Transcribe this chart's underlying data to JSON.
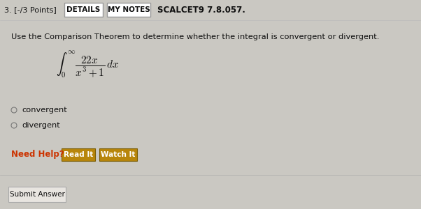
{
  "bg_color": "#cac8c2",
  "content_bg": "#edecea",
  "header_bg": "#dddbd7",
  "problem_number": "3. [-/3 Points]",
  "details_btn": "DETAILS",
  "mynotes_btn": "MY NOTES",
  "scalcet": "SCALCET9 7.8.057.",
  "question_text": "Use the Comparison Theorem to determine whether the integral is convergent or divergent.",
  "integral_expr": "$\\int_0^{\\infty} \\dfrac{22x}{x^3+1}\\, dx$",
  "option1": "convergent",
  "option2": "divergent",
  "need_help": "Need Help?",
  "read_it": "Read It",
  "watch_it": "Watch It",
  "submit": "Submit Answer",
  "need_help_color": "#cc3300",
  "btn_bg": "#b8860b",
  "btn_text": "#ffffff",
  "submit_bg": "#e0ddd8",
  "radio_color": "#777777",
  "text_color": "#111111",
  "header_text_color": "#111111",
  "white": "#ffffff",
  "border_color": "#999999",
  "figw": 6.02,
  "figh": 3.0,
  "dpi": 100
}
